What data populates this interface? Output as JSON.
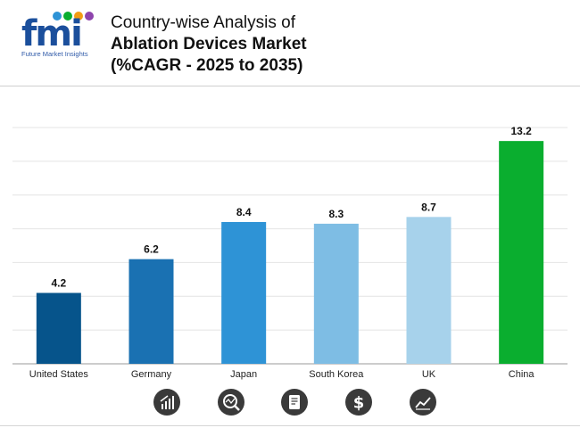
{
  "brand": {
    "logo_text": "fmi",
    "logo_subtitle": "Future Market Insights"
  },
  "title": {
    "line1": "Country-wise Analysis of",
    "line2": "Ablation Devices Market",
    "line3": "(%CAGR - 2025 to 2035)"
  },
  "colors": {
    "United States": "#06548b",
    "Germany": "#1a71b2",
    "Japan": "#2e93d6",
    "South Korea": "#7ebde4",
    "UK": "#a7d2eb",
    "China": "#0aae2f"
  },
  "chart_data": {
    "type": "bar",
    "title": "Country-wise Analysis of Ablation Devices Market (%CAGR - 2025 to 2035)",
    "categories": [
      "United States",
      "Germany",
      "Japan",
      "South Korea",
      "UK",
      "China"
    ],
    "values": [
      4.2,
      6.2,
      8.4,
      8.3,
      8.7,
      13.2
    ],
    "value_labels": [
      "4.2",
      "6.2",
      "8.4",
      "8.3",
      "8.7",
      "13.2"
    ],
    "xlabel": "",
    "ylabel": "",
    "ylim": [
      0,
      14
    ],
    "grid": true,
    "legend": "none"
  },
  "footer_icons": [
    "growth-chart-icon",
    "analysis-icon",
    "report-icon",
    "dollar-icon",
    "trend-line-icon"
  ]
}
